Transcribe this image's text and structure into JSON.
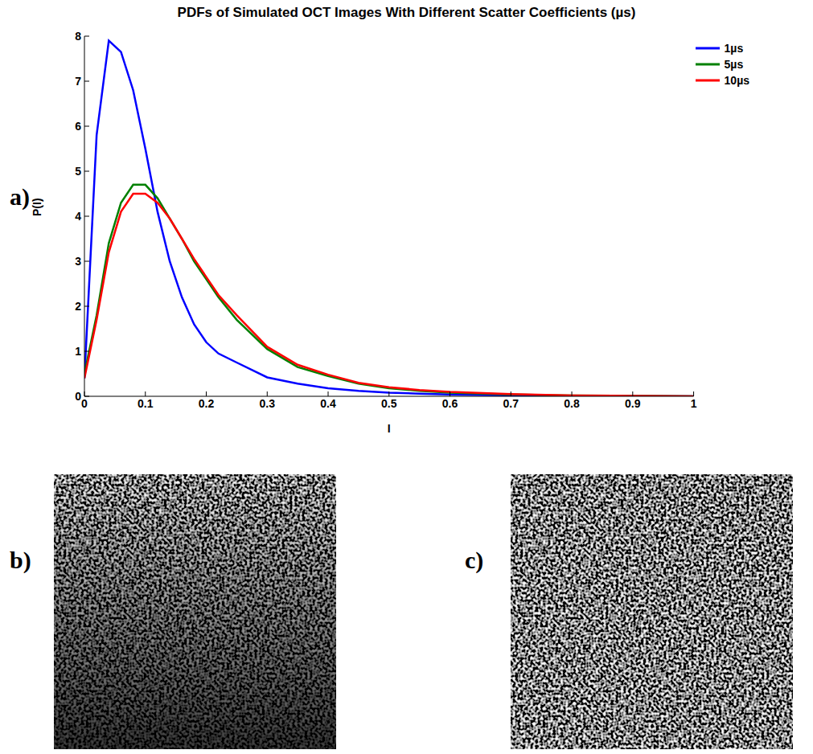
{
  "chart_data": {
    "type": "line",
    "title": "PDFs of Simulated OCT Images With Different Scatter Coefficients (µs)",
    "x_label": "I",
    "y_label": "P(I)",
    "x": [
      0,
      0.02,
      0.04,
      0.06,
      0.08,
      0.1,
      0.12,
      0.14,
      0.16,
      0.18,
      0.2,
      0.22,
      0.25,
      0.3,
      0.35,
      0.4,
      0.45,
      0.5,
      0.55,
      0.6,
      0.7,
      0.8,
      0.9,
      1
    ],
    "series": [
      {
        "name": "1µs",
        "color": "#0000ff",
        "values": [
          0.4,
          5.8,
          7.9,
          7.65,
          6.8,
          5.5,
          4.1,
          3.0,
          2.2,
          1.6,
          1.2,
          0.95,
          0.75,
          0.42,
          0.28,
          0.18,
          0.12,
          0.08,
          0.06,
          0.04,
          0.02,
          0.01,
          0.005,
          0
        ]
      },
      {
        "name": "5µs",
        "color": "#008000",
        "values": [
          0.5,
          1.8,
          3.4,
          4.3,
          4.7,
          4.7,
          4.4,
          3.95,
          3.5,
          3.0,
          2.6,
          2.2,
          1.7,
          1.05,
          0.65,
          0.45,
          0.28,
          0.18,
          0.12,
          0.08,
          0.04,
          0.02,
          0.01,
          0
        ]
      },
      {
        "name": "10µs",
        "color": "#ff0000",
        "values": [
          0.4,
          1.7,
          3.2,
          4.1,
          4.5,
          4.5,
          4.3,
          3.95,
          3.5,
          3.05,
          2.65,
          2.25,
          1.8,
          1.1,
          0.7,
          0.48,
          0.3,
          0.2,
          0.14,
          0.1,
          0.05,
          0.02,
          0.01,
          0
        ]
      }
    ],
    "xlim": [
      0,
      1
    ],
    "ylim": [
      0,
      8
    ],
    "xticks": [
      0,
      0.1,
      0.2,
      0.3,
      0.4,
      0.5,
      0.6,
      0.7,
      0.8,
      0.9,
      1
    ],
    "yticks": [
      0,
      1,
      2,
      3,
      4,
      5,
      6,
      7,
      8
    ],
    "legend": "upper right",
    "grid": false
  },
  "panel_label": "a)",
  "images": [
    {
      "label": "b)",
      "depth_fade": true
    },
    {
      "label": "c)",
      "depth_fade": false
    }
  ]
}
